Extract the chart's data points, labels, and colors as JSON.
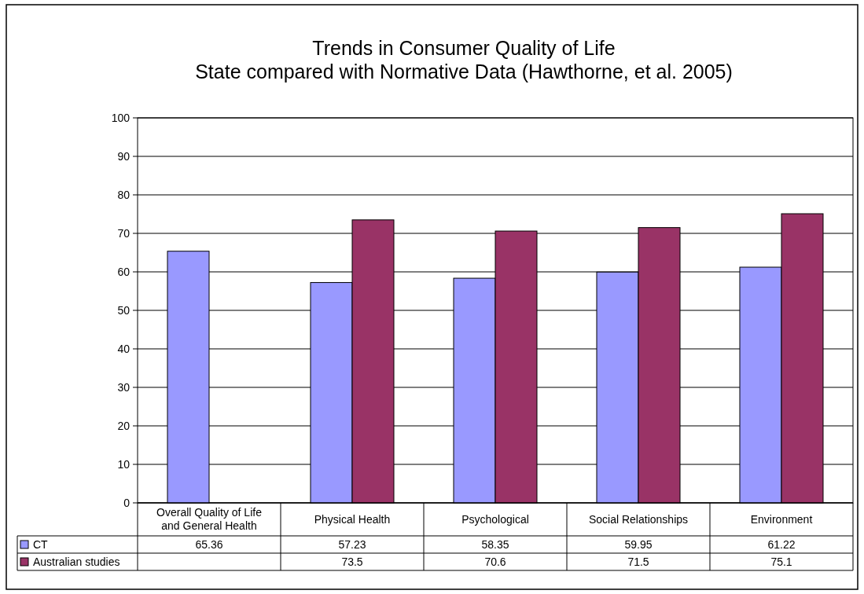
{
  "chart_data": {
    "type": "bar",
    "title": "Trends in Consumer Quality of Life\nState compared with Normative Data (Hawthorne, et al. 2005)",
    "categories": [
      "Overall Quality of Life and General Health",
      "Physical Health",
      "Psychological",
      "Social Relationships",
      "Environment"
    ],
    "series": [
      {
        "name": "CT",
        "color": "#9999ff",
        "values": [
          65.36,
          57.23,
          58.35,
          59.95,
          61.22
        ]
      },
      {
        "name": "Australian studies",
        "color": "#993366",
        "values": [
          null,
          73.5,
          70.6,
          71.5,
          75.1
        ]
      }
    ],
    "ylim": [
      0,
      100
    ],
    "yticks": [
      0,
      10,
      20,
      30,
      40,
      50,
      60,
      70,
      80,
      90,
      100
    ],
    "grid": "y",
    "legend": "bottom",
    "data_labels": true
  }
}
